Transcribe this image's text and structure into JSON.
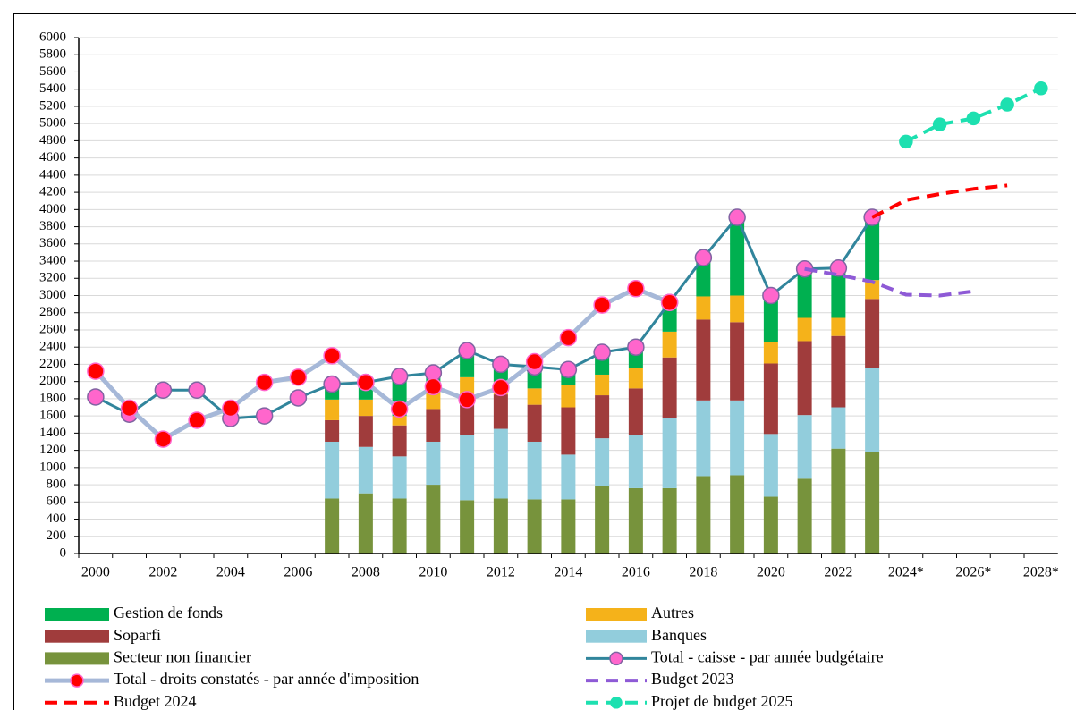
{
  "chart_data": {
    "type": "bar",
    "stacked": true,
    "categories": [
      "2000",
      null,
      "2002",
      null,
      "2004",
      null,
      "2006",
      null,
      "2008",
      null,
      "2010",
      null,
      "2012",
      null,
      "2014",
      null,
      "2016",
      null,
      "2018",
      null,
      "2020",
      null,
      "2022",
      null,
      "2024*",
      null,
      "2026*",
      null,
      "2028*"
    ],
    "ylim": [
      0,
      6000
    ],
    "yticks": [
      0,
      200,
      400,
      600,
      800,
      1000,
      1200,
      1400,
      1600,
      1800,
      2000,
      2200,
      2400,
      2600,
      2800,
      3000,
      3200,
      3400,
      3600,
      3800,
      4000,
      4200,
      4400,
      4600,
      4800,
      5000,
      5200,
      5400,
      5600,
      5800,
      6000
    ],
    "grid": true,
    "series": [
      {
        "name": "Gestion de fonds",
        "type": "bar",
        "color": "#00b050",
        "values": [
          null,
          null,
          null,
          null,
          null,
          null,
          null,
          180,
          200,
          460,
          220,
          310,
          200,
          250,
          180,
          260,
          240,
          340,
          450,
          910,
          540,
          570,
          580,
          730,
          null,
          null,
          null,
          null,
          null
        ]
      },
      {
        "name": "Autres",
        "type": "bar",
        "color": "#f5b21a",
        "values": [
          null,
          null,
          null,
          null,
          null,
          null,
          null,
          240,
          190,
          110,
          200,
          250,
          150,
          190,
          260,
          240,
          240,
          300,
          270,
          310,
          250,
          270,
          210,
          220,
          null,
          null,
          null,
          null,
          null
        ]
      },
      {
        "name": "Soparfi",
        "type": "bar",
        "color": "#a03c3c",
        "values": [
          null,
          null,
          null,
          null,
          null,
          null,
          null,
          250,
          360,
          360,
          380,
          420,
          400,
          430,
          550,
          500,
          540,
          710,
          940,
          910,
          820,
          860,
          830,
          800,
          null,
          null,
          null,
          null,
          null
        ]
      },
      {
        "name": "Banques",
        "type": "bar",
        "color": "#92cddc",
        "values": [
          null,
          null,
          null,
          null,
          null,
          null,
          null,
          660,
          540,
          490,
          500,
          760,
          810,
          670,
          520,
          560,
          620,
          810,
          880,
          870,
          730,
          740,
          480,
          980,
          null,
          null,
          null,
          null,
          null
        ]
      },
      {
        "name": "Secteur non financier",
        "type": "bar",
        "color": "#77933c",
        "values": [
          null,
          null,
          null,
          null,
          null,
          null,
          null,
          640,
          700,
          640,
          800,
          620,
          640,
          630,
          630,
          780,
          760,
          760,
          900,
          910,
          660,
          870,
          1220,
          1180,
          null,
          null,
          null,
          null,
          null
        ]
      },
      {
        "name": "Total - caisse - par année budgétaire",
        "type": "line",
        "color": "#31859c",
        "marker_color": "#ff66cc",
        "values": [
          1820,
          1620,
          1900,
          1900,
          1570,
          1600,
          1810,
          1970,
          1990,
          2060,
          2100,
          2360,
          2200,
          2170,
          2140,
          2340,
          2400,
          2920,
          3440,
          3910,
          3000,
          3310,
          3320,
          3910,
          null,
          null,
          null,
          null,
          null
        ]
      },
      {
        "name": "Total - droits constatés - par année d'imposition",
        "type": "line",
        "color": "#a6b8d8",
        "marker_color": "#ff0000",
        "values": [
          2120,
          1690,
          1330,
          1550,
          1690,
          1990,
          2050,
          2300,
          1990,
          1680,
          1940,
          1790,
          1930,
          2230,
          2510,
          2890,
          3080,
          2920,
          null,
          null,
          null,
          null,
          null,
          null,
          null,
          null,
          null,
          null,
          null
        ]
      },
      {
        "name": "Budget 2023",
        "type": "line",
        "color": "#8e5ad6",
        "dashed": true,
        "values": [
          null,
          null,
          null,
          null,
          null,
          null,
          null,
          null,
          null,
          null,
          null,
          null,
          null,
          null,
          null,
          null,
          null,
          null,
          null,
          null,
          null,
          3310,
          3240,
          3160,
          3010,
          3000,
          3050,
          null,
          null
        ]
      },
      {
        "name": "Budget 2024",
        "type": "line",
        "color": "#ff0000",
        "dashed": true,
        "values": [
          null,
          null,
          null,
          null,
          null,
          null,
          null,
          null,
          null,
          null,
          null,
          null,
          null,
          null,
          null,
          null,
          null,
          null,
          null,
          null,
          null,
          null,
          null,
          3910,
          4110,
          4180,
          4240,
          4280,
          null
        ]
      },
      {
        "name": "Projet de budget 2025",
        "type": "line",
        "color": "#1de0b0",
        "dashed": true,
        "marker_color": "#1de0b0",
        "values": [
          null,
          null,
          null,
          null,
          null,
          null,
          null,
          null,
          null,
          null,
          null,
          null,
          null,
          null,
          null,
          null,
          null,
          null,
          null,
          null,
          null,
          null,
          null,
          null,
          4790,
          4990,
          5060,
          5220,
          5410
        ]
      }
    ]
  }
}
